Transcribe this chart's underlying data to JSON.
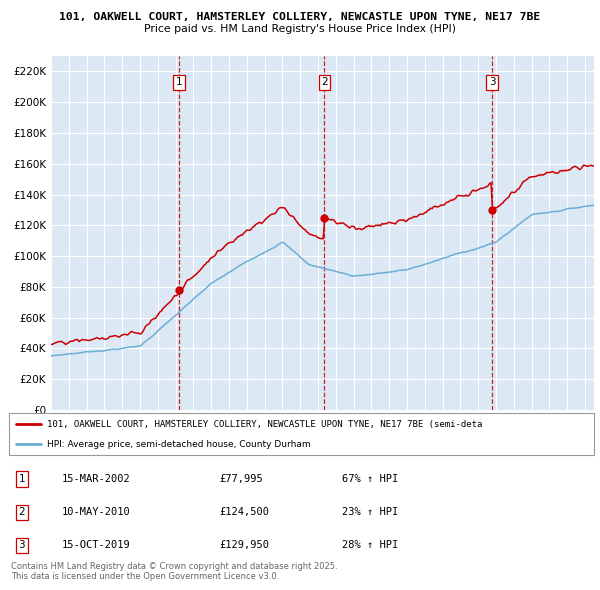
{
  "title_line1": "101, OAKWELL COURT, HAMSTERLEY COLLIERY, NEWCASTLE UPON TYNE, NE17 7BE",
  "title_line2": "Price paid vs. HM Land Registry's House Price Index (HPI)",
  "background_color": "#dce9f5",
  "red_line_color": "#cc0000",
  "blue_line_color": "#6baed6",
  "ylim": [
    0,
    230000
  ],
  "yticks": [
    0,
    20000,
    40000,
    60000,
    80000,
    100000,
    120000,
    140000,
    160000,
    180000,
    200000,
    220000
  ],
  "legend_red": "101, OAKWELL COURT, HAMSTERLEY COLLIERY, NEWCASTLE UPON TYNE, NE17 7BE (semi-deta",
  "legend_blue": "HPI: Average price, semi-detached house, County Durham",
  "table_entries": [
    {
      "num": "1",
      "date": "15-MAR-2002",
      "price": "£77,995",
      "change": "67% ↑ HPI"
    },
    {
      "num": "2",
      "date": "10-MAY-2010",
      "price": "£124,500",
      "change": "23% ↑ HPI"
    },
    {
      "num": "3",
      "date": "15-OCT-2019",
      "price": "£129,950",
      "change": "28% ↑ HPI"
    }
  ],
  "footer": "Contains HM Land Registry data © Crown copyright and database right 2025.\nThis data is licensed under the Open Government Licence v3.0.",
  "sale_prices": [
    77995,
    124500,
    129950
  ],
  "sale_years": [
    2002.21,
    2010.36,
    2019.79
  ]
}
